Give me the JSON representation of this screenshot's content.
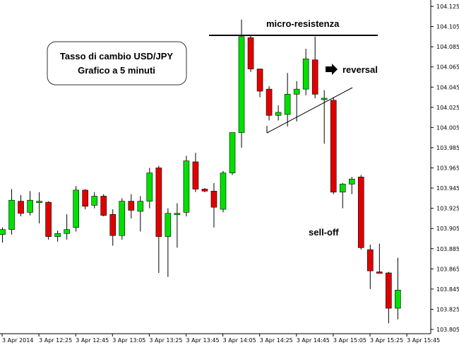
{
  "chart_data": {
    "type": "candlestick",
    "title": "Tasso di cambio USD/JPY",
    "subtitle": "Grafico a 5 minuti",
    "ylim": [
      103.795,
      104.135
    ],
    "y_ticks": [
      "104.125",
      "104.105",
      "104.085",
      "104.065",
      "104.045",
      "104.025",
      "104.005",
      "103.985",
      "103.965",
      "103.945",
      "103.925",
      "103.905",
      "103.885",
      "103.865",
      "103.845",
      "103.825",
      "103.805"
    ],
    "x_ticks": [
      "3 Apr 2014",
      "3 Apr 12:25",
      "3 Apr 12:45",
      "3 Apr 13:05",
      "3 Apr 13:25",
      "3 Apr 13:45",
      "3 Apr 14:05",
      "3 Apr 14:25",
      "3 Apr 14:45",
      "3 Apr 15:05",
      "3 Apr 15:25",
      "3 Apr 15:45"
    ],
    "candles": [
      {
        "o": 103.899,
        "h": 103.906,
        "l": 103.891,
        "c": 103.904
      },
      {
        "o": 103.904,
        "h": 103.944,
        "l": 103.899,
        "c": 103.933
      },
      {
        "o": 103.932,
        "h": 103.938,
        "l": 103.917,
        "c": 103.92
      },
      {
        "o": 103.921,
        "h": 103.942,
        "l": 103.918,
        "c": 103.933
      },
      {
        "o": 103.932,
        "h": 103.941,
        "l": 103.91,
        "c": 103.932
      },
      {
        "o": 103.931,
        "h": 103.932,
        "l": 103.894,
        "c": 103.897
      },
      {
        "o": 103.897,
        "h": 103.903,
        "l": 103.892,
        "c": 103.9
      },
      {
        "o": 103.9,
        "h": 103.919,
        "l": 103.894,
        "c": 103.904
      },
      {
        "o": 103.906,
        "h": 103.947,
        "l": 103.902,
        "c": 103.943
      },
      {
        "o": 103.943,
        "h": 103.944,
        "l": 103.924,
        "c": 103.927
      },
      {
        "o": 103.928,
        "h": 103.941,
        "l": 103.925,
        "c": 103.937
      },
      {
        "o": 103.937,
        "h": 103.939,
        "l": 103.917,
        "c": 103.918
      },
      {
        "o": 103.919,
        "h": 103.924,
        "l": 103.888,
        "c": 103.898
      },
      {
        "o": 103.898,
        "h": 103.935,
        "l": 103.894,
        "c": 103.932
      },
      {
        "o": 103.932,
        "h": 103.939,
        "l": 103.915,
        "c": 103.923
      },
      {
        "o": 103.922,
        "h": 103.937,
        "l": 103.902,
        "c": 103.932
      },
      {
        "o": 103.932,
        "h": 103.965,
        "l": 103.925,
        "c": 103.96
      },
      {
        "o": 103.965,
        "h": 103.967,
        "l": 103.861,
        "c": 103.897
      },
      {
        "o": 103.897,
        "h": 103.925,
        "l": 103.857,
        "c": 103.92
      },
      {
        "o": 103.92,
        "h": 103.93,
        "l": 103.886,
        "c": 103.92
      },
      {
        "o": 103.921,
        "h": 103.977,
        "l": 103.917,
        "c": 103.972
      },
      {
        "o": 103.971,
        "h": 103.98,
        "l": 103.941,
        "c": 103.944
      },
      {
        "o": 103.944,
        "h": 103.945,
        "l": 103.941,
        "c": 103.942
      },
      {
        "o": 103.942,
        "h": 103.95,
        "l": 103.906,
        "c": 103.926
      },
      {
        "o": 103.924,
        "h": 103.962,
        "l": 103.921,
        "c": 103.96
      },
      {
        "o": 103.96,
        "h": 104.0,
        "l": 103.958,
        "c": 104.0
      },
      {
        "o": 104.0,
        "h": 104.112,
        "l": 103.985,
        "c": 104.095
      },
      {
        "o": 104.094,
        "h": 104.096,
        "l": 104.06,
        "c": 104.063
      },
      {
        "o": 104.063,
        "h": 104.063,
        "l": 104.035,
        "c": 104.041
      },
      {
        "o": 104.043,
        "h": 104.046,
        "l": 104.012,
        "c": 104.017
      },
      {
        "o": 104.017,
        "h": 104.027,
        "l": 104.012,
        "c": 104.02
      },
      {
        "o": 104.018,
        "h": 104.059,
        "l": 104.006,
        "c": 104.038
      },
      {
        "o": 104.038,
        "h": 104.051,
        "l": 104.011,
        "c": 104.043
      },
      {
        "o": 104.043,
        "h": 104.083,
        "l": 104.037,
        "c": 104.073
      },
      {
        "o": 104.072,
        "h": 104.095,
        "l": 104.034,
        "c": 104.038
      },
      {
        "o": 104.033,
        "h": 104.042,
        "l": 103.989,
        "c": 104.034
      },
      {
        "o": 104.032,
        "h": 104.035,
        "l": 103.939,
        "c": 103.941
      },
      {
        "o": 103.941,
        "h": 103.95,
        "l": 103.925,
        "c": 103.949
      },
      {
        "o": 103.949,
        "h": 103.956,
        "l": 103.939,
        "c": 103.954
      },
      {
        "o": 103.956,
        "h": 103.958,
        "l": 103.884,
        "c": 103.886
      },
      {
        "o": 103.884,
        "h": 103.889,
        "l": 103.845,
        "c": 103.863
      },
      {
        "o": 103.862,
        "h": 103.89,
        "l": 103.861,
        "c": 103.861
      },
      {
        "o": 103.861,
        "h": 103.862,
        "l": 103.811,
        "c": 103.826
      },
      {
        "o": 103.826,
        "h": 103.876,
        "l": 103.815,
        "c": 103.844
      }
    ],
    "annotations": {
      "resistance": "micro-resistenza",
      "reversal": "reversal",
      "selloff": "sell-off"
    },
    "colors": {
      "up": "#00e000",
      "down": "#e00000",
      "outline": "#000000"
    }
  }
}
